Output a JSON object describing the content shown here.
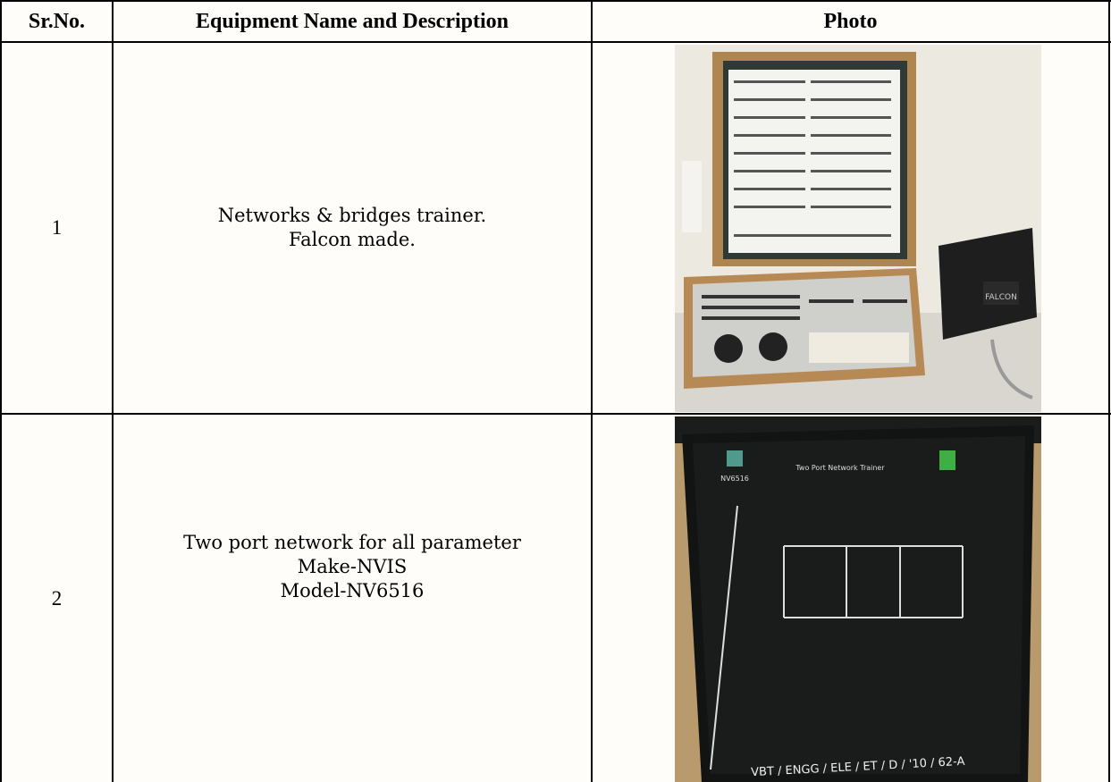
{
  "table": {
    "headers": [
      "Sr.No.",
      "Equipment Name and Description",
      "Photo"
    ],
    "rows": [
      {
        "sr": "1",
        "description": [
          "Networks & bridges trainer.",
          "Falcon made."
        ],
        "photo_labels": [
          "FALCON"
        ]
      },
      {
        "sr": "2",
        "description": [
          "Two port network for all parameter",
          "Make-NVIS",
          "Model-NV6516"
        ],
        "photo_labels": [
          "NV6516",
          "Two Port Network Trainer",
          "VBT / ENGG / ELE / ET / D / '10 / 62-A"
        ]
      }
    ]
  }
}
